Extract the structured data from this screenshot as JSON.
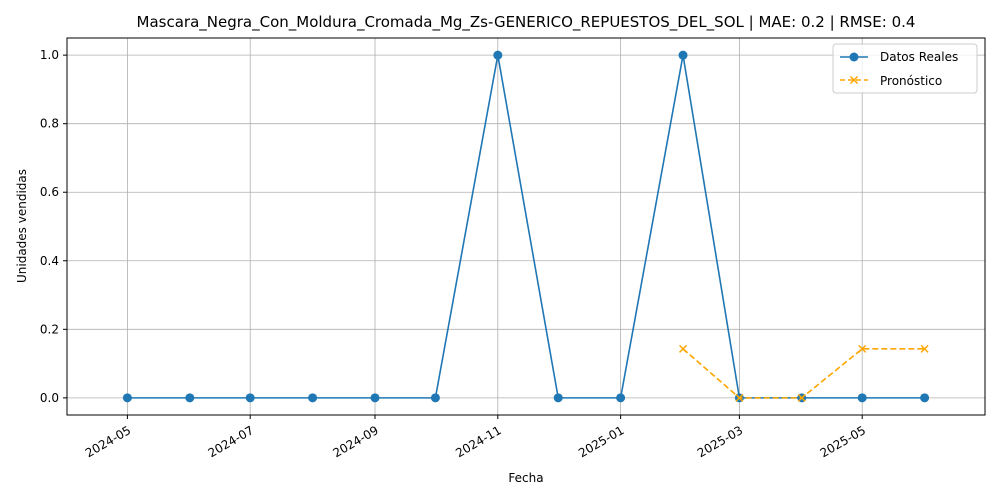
{
  "chart_data": {
    "type": "line",
    "title": "Mascara_Negra_Con_Moldura_Cromada_Mg_Zs-GENERICO_REPUESTOS_DEL_SOL | MAE: 0.2 | RMSE: 0.4",
    "xlabel": "Fecha",
    "ylabel": "Unidades vendidas",
    "x_ticks": [
      "2024-05",
      "2024-07",
      "2024-09",
      "2024-11",
      "2025-01",
      "2025-03",
      "2025-05"
    ],
    "y_ticks": [
      "0.0",
      "0.2",
      "0.4",
      "0.6",
      "0.8",
      "1.0"
    ],
    "xlim": [
      "2024-04-01",
      "2025-07-01"
    ],
    "ylim": [
      -0.05,
      1.05
    ],
    "grid": true,
    "legend_position": "top-right",
    "series": [
      {
        "name": "Datos Reales",
        "color": "#1f77b4",
        "line_style": "solid",
        "marker": "circle",
        "x": [
          "2024-05-01",
          "2024-06-01",
          "2024-07-01",
          "2024-08-01",
          "2024-09-01",
          "2024-10-01",
          "2024-11-01",
          "2024-12-01",
          "2025-01-01",
          "2025-02-01",
          "2025-03-01",
          "2025-04-01",
          "2025-05-01",
          "2025-06-01"
        ],
        "y": [
          0,
          0,
          0,
          0,
          0,
          0,
          1,
          0,
          0,
          1,
          0,
          0,
          0,
          0
        ]
      },
      {
        "name": "Pronóstico",
        "color": "#ffa500",
        "line_style": "dashed",
        "marker": "x",
        "x": [
          "2025-02-01",
          "2025-03-01",
          "2025-04-01",
          "2025-05-01",
          "2025-06-01"
        ],
        "y": [
          0.143,
          0,
          0,
          0.143,
          0.143
        ]
      }
    ]
  }
}
